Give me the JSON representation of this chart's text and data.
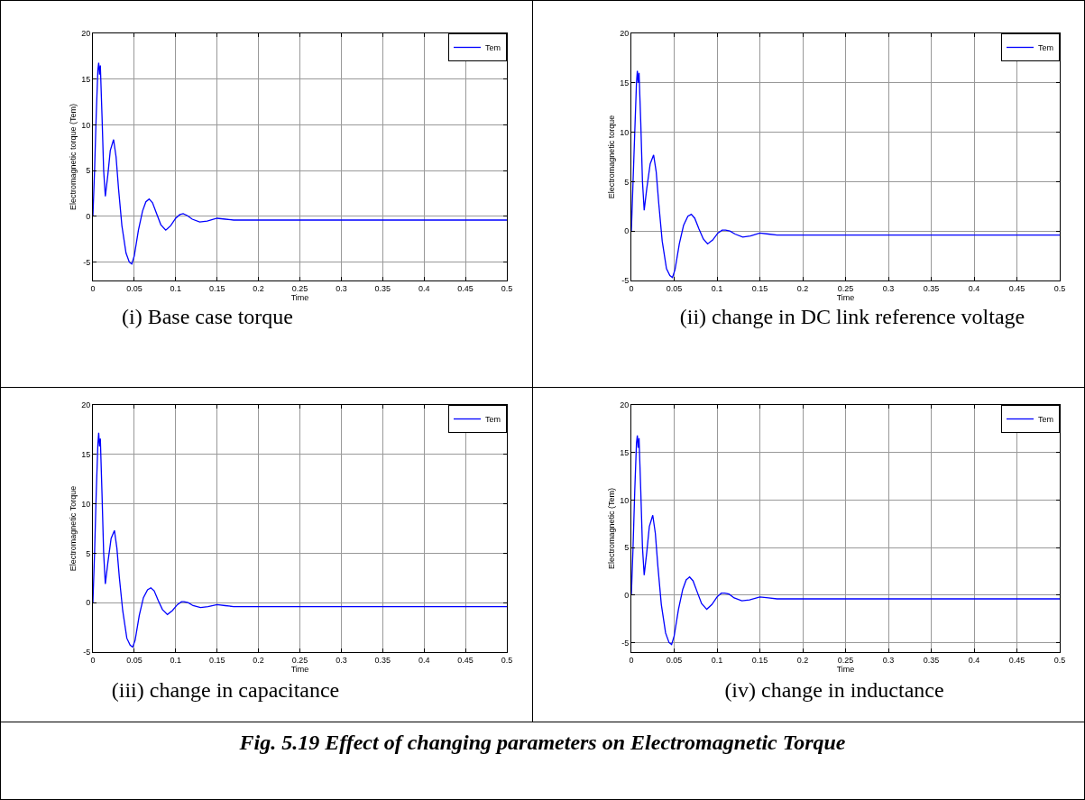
{
  "chart_data": [
    {
      "type": "line",
      "xlabel": "Time",
      "ylabel": "Electromagnetic torque (Tem)",
      "xlim": [
        0,
        0.5
      ],
      "xticks": [
        0,
        0.05,
        0.1,
        0.15,
        0.2,
        0.25,
        0.3,
        0.35,
        0.4,
        0.45,
        0.5
      ],
      "ylim": [
        -7,
        20
      ],
      "yticks": [
        -5,
        0,
        5,
        10,
        15,
        20
      ],
      "grid": true,
      "legend": "top right",
      "annotations": [
        "(i) Base case torque"
      ],
      "series": [
        {
          "name": "Tem",
          "color": "#0000ff",
          "x": [
            0,
            0.002,
            0.004,
            0.006,
            0.007,
            0.008,
            0.009,
            0.011,
            0.013,
            0.015,
            0.018,
            0.021,
            0.025,
            0.028,
            0.031,
            0.035,
            0.04,
            0.044,
            0.047,
            0.05,
            0.055,
            0.06,
            0.064,
            0.068,
            0.072,
            0.077,
            0.082,
            0.088,
            0.094,
            0.1,
            0.105,
            0.109,
            0.114,
            0.12,
            0.129,
            0.138,
            0.15,
            0.16,
            0.17,
            0.2,
            0.25,
            0.3,
            0.4,
            0.5
          ],
          "values": [
            0,
            5,
            11,
            16,
            16.8,
            15.5,
            16.5,
            11,
            5,
            2.2,
            4.5,
            7.2,
            8.4,
            6.5,
            3,
            -1,
            -4,
            -5,
            -5.2,
            -4.3,
            -1.5,
            0.6,
            1.6,
            1.9,
            1.5,
            0.3,
            -0.9,
            -1.5,
            -1,
            -0.2,
            0.2,
            0.3,
            0.1,
            -0.3,
            -0.6,
            -0.5,
            -0.2,
            -0.3,
            -0.4,
            -0.4,
            -0.4,
            -0.4,
            -0.4,
            -0.4
          ]
        }
      ]
    },
    {
      "type": "line",
      "xlabel": "Time",
      "ylabel": "Electromagnetic torque",
      "xlim": [
        0,
        0.5
      ],
      "xticks": [
        0,
        0.05,
        0.1,
        0.15,
        0.2,
        0.25,
        0.3,
        0.35,
        0.4,
        0.45,
        0.5
      ],
      "ylim": [
        -5,
        20
      ],
      "yticks": [
        -5,
        0,
        5,
        10,
        15,
        20
      ],
      "grid": true,
      "legend": "top right",
      "annotations": [
        "(ii) change in DC link reference voltage"
      ],
      "series": [
        {
          "name": "Tem",
          "color": "#0000ff",
          "x": [
            0,
            0.002,
            0.004,
            0.006,
            0.007,
            0.008,
            0.009,
            0.011,
            0.013,
            0.015,
            0.018,
            0.022,
            0.026,
            0.029,
            0.032,
            0.036,
            0.041,
            0.045,
            0.048,
            0.051,
            0.056,
            0.061,
            0.066,
            0.07,
            0.074,
            0.079,
            0.084,
            0.089,
            0.095,
            0.101,
            0.106,
            0.11,
            0.115,
            0.121,
            0.13,
            0.139,
            0.15,
            0.16,
            0.17,
            0.2,
            0.25,
            0.3,
            0.4,
            0.5
          ],
          "values": [
            0,
            5,
            10,
            15,
            16.2,
            15,
            16,
            11,
            5,
            2.1,
            4.3,
            6.8,
            7.7,
            6,
            2.8,
            -1,
            -3.8,
            -4.5,
            -4.7,
            -3.9,
            -1.3,
            0.6,
            1.5,
            1.7,
            1.3,
            0.2,
            -0.8,
            -1.3,
            -0.9,
            -0.2,
            0.1,
            0.1,
            0,
            -0.3,
            -0.6,
            -0.5,
            -0.2,
            -0.3,
            -0.4,
            -0.4,
            -0.4,
            -0.4,
            -0.4,
            -0.4
          ]
        }
      ]
    },
    {
      "type": "line",
      "xlabel": "Time",
      "ylabel": "Electromagnetic Torque",
      "xlim": [
        0,
        0.5
      ],
      "xticks": [
        0,
        0.05,
        0.1,
        0.15,
        0.2,
        0.25,
        0.3,
        0.35,
        0.4,
        0.45,
        0.5
      ],
      "ylim": [
        -5,
        20
      ],
      "yticks": [
        -5,
        0,
        5,
        10,
        15,
        20
      ],
      "grid": true,
      "legend": "top right",
      "annotations": [
        "(iii) change in capacitance"
      ],
      "series": [
        {
          "name": "Tem",
          "color": "#0000ff",
          "x": [
            0,
            0.002,
            0.004,
            0.006,
            0.007,
            0.008,
            0.009,
            0.011,
            0.013,
            0.015,
            0.018,
            0.022,
            0.026,
            0.029,
            0.032,
            0.036,
            0.041,
            0.045,
            0.048,
            0.051,
            0.056,
            0.061,
            0.066,
            0.07,
            0.074,
            0.079,
            0.084,
            0.09,
            0.096,
            0.102,
            0.107,
            0.11,
            0.115,
            0.121,
            0.13,
            0.139,
            0.15,
            0.16,
            0.17,
            0.2,
            0.25,
            0.3,
            0.4,
            0.5
          ],
          "values": [
            0,
            5,
            11,
            16,
            17.2,
            15.8,
            16.6,
            11,
            5,
            1.9,
            4,
            6.5,
            7.3,
            5.5,
            2.5,
            -0.8,
            -3.6,
            -4.3,
            -4.5,
            -3.8,
            -1.3,
            0.5,
            1.3,
            1.5,
            1.2,
            0.2,
            -0.7,
            -1.2,
            -0.8,
            -0.2,
            0.1,
            0.1,
            0,
            -0.3,
            -0.5,
            -0.4,
            -0.2,
            -0.3,
            -0.4,
            -0.4,
            -0.4,
            -0.4,
            -0.4,
            -0.4
          ]
        }
      ]
    },
    {
      "type": "line",
      "xlabel": "Time",
      "ylabel": "Electromagnetic (Tem)",
      "xlim": [
        0,
        0.5
      ],
      "xticks": [
        0,
        0.05,
        0.1,
        0.15,
        0.2,
        0.25,
        0.3,
        0.35,
        0.4,
        0.45,
        0.5
      ],
      "ylim": [
        -6,
        20
      ],
      "yticks": [
        -5,
        0,
        5,
        10,
        15,
        20
      ],
      "grid": true,
      "legend": "top right",
      "annotations": [
        "(iv) change in inductance",
        "Fig. 5.19 Effect of changing parameters on Electromagnetic Torque"
      ],
      "series": [
        {
          "name": "Tem",
          "color": "#0000ff",
          "x": [
            0,
            0.002,
            0.004,
            0.006,
            0.007,
            0.008,
            0.009,
            0.011,
            0.013,
            0.015,
            0.018,
            0.021,
            0.025,
            0.028,
            0.031,
            0.035,
            0.04,
            0.044,
            0.047,
            0.05,
            0.055,
            0.06,
            0.064,
            0.068,
            0.072,
            0.077,
            0.082,
            0.088,
            0.094,
            0.1,
            0.105,
            0.109,
            0.114,
            0.12,
            0.129,
            0.138,
            0.15,
            0.16,
            0.17,
            0.2,
            0.25,
            0.3,
            0.4,
            0.5
          ],
          "values": [
            0,
            5,
            11,
            16,
            16.8,
            15.5,
            16.5,
            11,
            5,
            2.1,
            4.5,
            7.2,
            8.4,
            6.5,
            3,
            -1,
            -4,
            -5,
            -5.2,
            -4.3,
            -1.5,
            0.6,
            1.6,
            1.9,
            1.5,
            0.3,
            -0.9,
            -1.5,
            -1,
            -0.2,
            0.2,
            0.2,
            0.1,
            -0.3,
            -0.6,
            -0.5,
            -0.2,
            -0.3,
            -0.4,
            -0.4,
            -0.4,
            -0.4,
            -0.4,
            -0.4
          ]
        }
      ]
    }
  ]
}
